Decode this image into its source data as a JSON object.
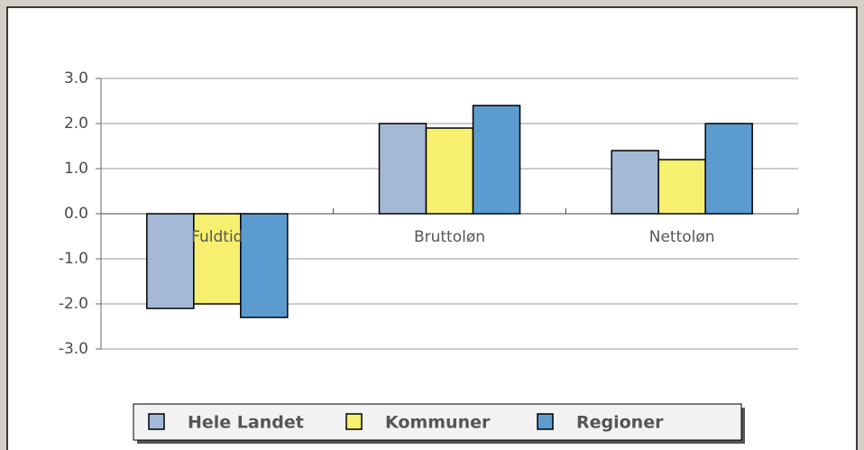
{
  "chart_data": {
    "type": "bar",
    "categories": [
      "Fuldtid",
      "Bruttoløn",
      "Nettoløn"
    ],
    "series": [
      {
        "name": "Hele Landet",
        "color": "#a3b9d6",
        "values": [
          -2.1,
          2.0,
          1.4
        ]
      },
      {
        "name": "Kommuner",
        "color": "#f7ef6f",
        "values": [
          -2.0,
          1.9,
          1.2
        ]
      },
      {
        "name": "Regioner",
        "color": "#5b9bd0",
        "values": [
          -2.3,
          2.4,
          2.0
        ]
      }
    ],
    "ylim": [
      -3,
      3
    ],
    "yticks": [
      {
        "value": 3,
        "label": "3.0"
      },
      {
        "value": 2,
        "label": "2.0"
      },
      {
        "value": 1,
        "label": "1.0"
      },
      {
        "value": 0,
        "label": "0.0"
      },
      {
        "value": -1,
        "label": "-1.0"
      },
      {
        "value": -2,
        "label": "-2.0"
      },
      {
        "value": -3,
        "label": "-3.0"
      }
    ],
    "grid": true
  }
}
